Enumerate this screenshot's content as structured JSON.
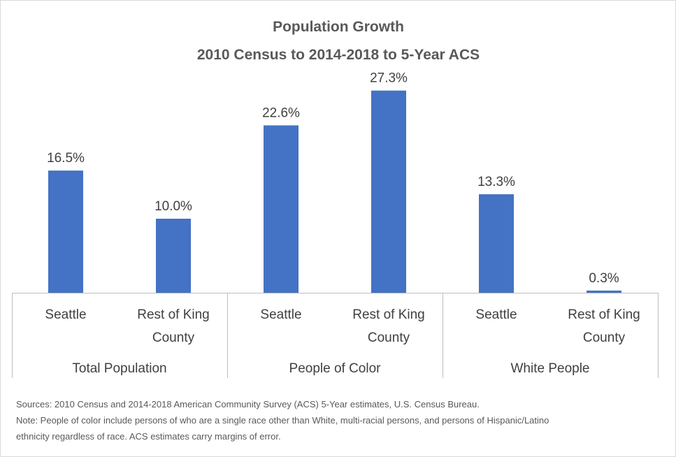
{
  "chart_data": {
    "type": "bar",
    "title": "Population Growth",
    "subtitle": "2010 Census to 2014-2018 to 5-Year ACS",
    "ylim": [
      0,
      30
    ],
    "grid": false,
    "groups": [
      {
        "name": "Total Population",
        "bars": [
          {
            "category": "Seattle",
            "label_lines": [
              "Seattle"
            ],
            "value": 16.5,
            "value_label": "16.5%"
          },
          {
            "category": "Rest of King County",
            "label_lines": [
              "Rest of King",
              "County"
            ],
            "value": 10.0,
            "value_label": "10.0%"
          }
        ]
      },
      {
        "name": "People of Color",
        "bars": [
          {
            "category": "Seattle",
            "label_lines": [
              "Seattle"
            ],
            "value": 22.6,
            "value_label": "22.6%"
          },
          {
            "category": "Rest of King County",
            "label_lines": [
              "Rest of King",
              "County"
            ],
            "value": 27.3,
            "value_label": "27.3%"
          }
        ]
      },
      {
        "name": "White People",
        "bars": [
          {
            "category": "Seattle",
            "label_lines": [
              "Seattle"
            ],
            "value": 13.3,
            "value_label": "13.3%"
          },
          {
            "category": "Rest of King County",
            "label_lines": [
              "Rest of King",
              "County"
            ],
            "value": 0.3,
            "value_label": "0.3%"
          }
        ]
      }
    ]
  },
  "notes": {
    "sources": "Sources: 2010 Census and 2014-2018 American Community Survey (ACS) 5-Year estimates, U.S. Census Bureau.",
    "note_line1": "Note: People of color include persons of who are a single race other than White, multi-racial persons, and persons of Hispanic/Latino",
    "note_line2": "ethnicity regardless of race. ACS estimates carry margins of error."
  },
  "colors": {
    "bar": "#4472c4",
    "axis": "#bfbfbf",
    "text": "#404040",
    "title": "#595959"
  }
}
